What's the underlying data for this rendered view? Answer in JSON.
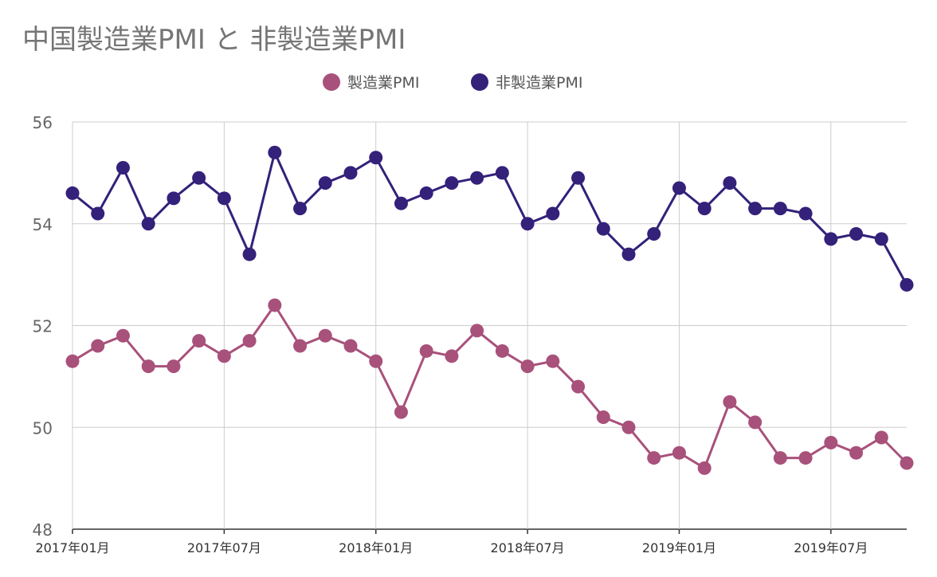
{
  "chart_data": {
    "type": "line",
    "title": "中国製造業PMI と 非製造業PMI",
    "legend": {
      "placement": "top-center"
    },
    "categories": [
      "2017年01月",
      "2017年02月",
      "2017年03月",
      "2017年04月",
      "2017年05月",
      "2017年06月",
      "2017年07月",
      "2017年08月",
      "2017年09月",
      "2017年10月",
      "2017年11月",
      "2017年12月",
      "2018年01月",
      "2018年02月",
      "2018年03月",
      "2018年04月",
      "2018年05月",
      "2018年06月",
      "2018年07月",
      "2018年08月",
      "2018年09月",
      "2018年10月",
      "2018年11月",
      "2018年12月",
      "2019年01月",
      "2019年02月",
      "2019年03月",
      "2019年04月",
      "2019年05月",
      "2019年06月",
      "2019年07月",
      "2019年08月",
      "2019年09月",
      "2019年10月"
    ],
    "x_tick_labels": [
      {
        "index": 0,
        "label": "2017年01月"
      },
      {
        "index": 6,
        "label": "2017年07月"
      },
      {
        "index": 12,
        "label": "2018年01月"
      },
      {
        "index": 18,
        "label": "2018年07月"
      },
      {
        "index": 24,
        "label": "2019年01月"
      },
      {
        "index": 30,
        "label": "2019年07月"
      }
    ],
    "y_ticks": [
      "48",
      "50",
      "52",
      "54",
      "56"
    ],
    "ylim": [
      48,
      56
    ],
    "grid": true,
    "series": [
      {
        "name": "製造業PMI",
        "color": "#a8517b",
        "values": [
          51.3,
          51.6,
          51.8,
          51.2,
          51.2,
          51.7,
          51.4,
          51.7,
          52.4,
          51.6,
          51.8,
          51.6,
          51.3,
          50.3,
          51.5,
          51.4,
          51.9,
          51.5,
          51.2,
          51.3,
          50.8,
          50.2,
          50.0,
          49.4,
          49.5,
          49.2,
          50.5,
          50.1,
          49.4,
          49.4,
          49.7,
          49.5,
          49.8,
          49.3
        ]
      },
      {
        "name": "非製造業PMI",
        "color": "#33217a",
        "values": [
          54.6,
          54.2,
          55.1,
          54.0,
          54.5,
          54.9,
          54.5,
          53.4,
          55.4,
          54.3,
          54.8,
          55.0,
          55.3,
          54.4,
          54.6,
          54.8,
          54.9,
          55.0,
          54.0,
          54.2,
          54.9,
          53.9,
          53.4,
          53.8,
          54.7,
          54.3,
          54.8,
          54.3,
          54.3,
          54.2,
          53.7,
          53.8,
          53.7,
          52.8
        ]
      }
    ]
  }
}
